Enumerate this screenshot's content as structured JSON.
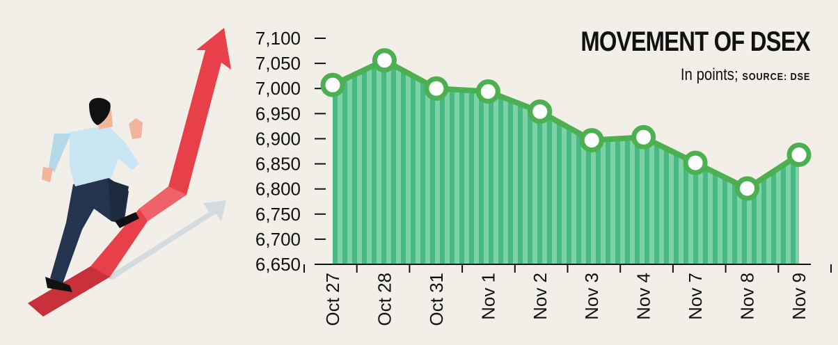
{
  "title": "MOVEMENT OF DSEX",
  "subtitle_prefix": "In points; ",
  "subtitle_source": "SOURCE: DSE",
  "colors": {
    "background": "#f1efe8",
    "line": "#4caf50",
    "area_dark": "#4ab884",
    "area_light": "#7fd1a8",
    "marker_fill": "#ffffff",
    "axis": "#111111",
    "arrow_red": "#e8404a",
    "arrow_gray": "#d3dbe1"
  },
  "illustration": "businessman-running-up-red-arrow",
  "chart_data": {
    "type": "area",
    "categories": [
      "Oct 27",
      "Oct 28",
      "Oct 31",
      "Nov 1",
      "Nov 2",
      "Nov 3",
      "Nov 4",
      "Nov 7",
      "Nov 8",
      "Nov 9"
    ],
    "values": [
      7007,
      7056,
      7000,
      6994,
      6954,
      6897,
      6903,
      6852,
      6801,
      6868
    ],
    "yticks": [
      7100,
      7050,
      7000,
      6950,
      6900,
      6850,
      6800,
      6750,
      6700,
      6650
    ],
    "ytick_labels": [
      "7,100",
      "7,050",
      "7,000",
      "6,950",
      "6,900",
      "6,850",
      "6,800",
      "6,750",
      "6,700",
      "6,650"
    ],
    "ylim": [
      6650,
      7100
    ],
    "grid": false,
    "legend": "none"
  }
}
